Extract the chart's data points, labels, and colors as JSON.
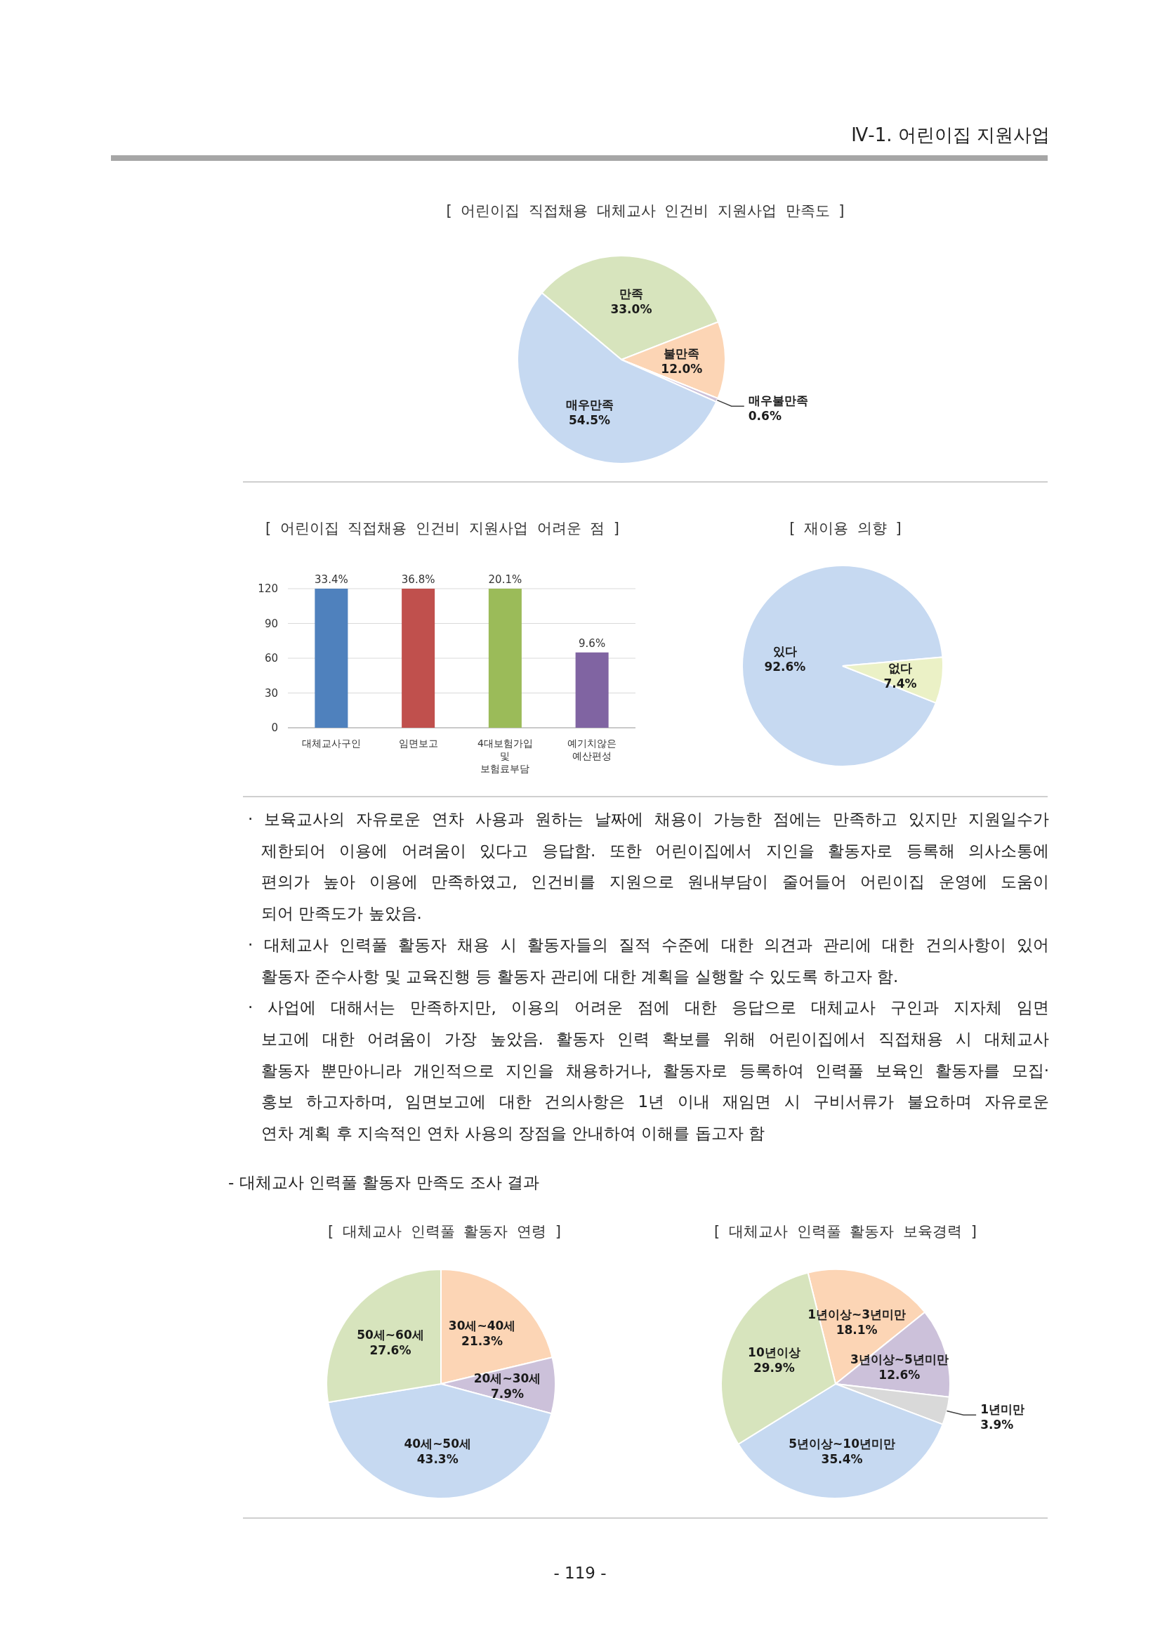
{
  "chart_data": [
    {
      "type": "pie",
      "title": "[ 어린이집 직접채용 대체교사 인건비 지원사업 만족도 ]",
      "categories": [
        "만족",
        "불만족",
        "매우불만족",
        "매우만족"
      ],
      "values": [
        33.0,
        12.0,
        0.6,
        54.5
      ],
      "value_labels": [
        "33.0%",
        "12.0%",
        "0.6%",
        "54.5%"
      ],
      "colors": [
        "#d7e4bd",
        "#fcd5b5",
        "#ccc1da",
        "#c6d9f1"
      ],
      "annotations": [
        "Ⅳ-1. 어린이집 지원사업"
      ]
    },
    {
      "type": "bar",
      "title": "[ 어린이집 직접채용 인건비 지원사업 어려운 점 ]",
      "categories": [
        "대체교사구인",
        "임면보고",
        "4대보험가입\n및\n보험료부담",
        "예기치않은\n예산편성"
      ],
      "values": [
        120,
        120,
        120,
        65
      ],
      "colors": [
        "#4f81bd",
        "#c0504d",
        "#9bbb59",
        "#8064a2"
      ],
      "ylim": [
        0,
        120
      ],
      "yticks": [
        0,
        30,
        60,
        90,
        120
      ],
      "grid": "y",
      "annotations": [
        {
          "text": "33.4%",
          "x": "대체교사구인",
          "y": 120
        },
        {
          "text": "36.8%",
          "x": "임면보고",
          "y": 120
        },
        {
          "text": "20.1%",
          "x": "4대보험가입\n및\n보험료부담",
          "y": 120
        },
        {
          "text": "9.6%",
          "x": "예기치않은\n예산편성",
          "y": 65
        }
      ]
    },
    {
      "type": "pie",
      "title": "[ 재이용 의향 ]",
      "categories": [
        "있다",
        "없다"
      ],
      "values": [
        92.6,
        7.4
      ],
      "value_labels": [
        "92.6%",
        "7.4%"
      ],
      "colors": [
        "#c6d9f1",
        "#ebf1c6"
      ],
      "annotations": [
        "· 보육교사의 자유로운 연차 사용과 원하는 날짜에 채용이 가능한 점에는 만족하고 있지만 지원일수가\n제한되어 이용에 어려움이 있다고 응답함. 또한 어린이집에서 지인을 활동자로 등록해 의사소통에\n편의가 높아 이용에 만족하였고, 인건비를 지원으로 원내부담이 줄어들어 어린이집 운영에 도움이\n되어 만족도가 높았음.",
        "· 대체교사 인력풀 활동자 채용 시 활동자들의 질적 수준에 대한 의견과 관리에 대한 건의사항이 있어\n활동자 준수사항 및 교육진행 등 활동자 관리에 대한 계획을 실행할 수 있도록 하고자 함.",
        "· 사업에 대해서는 만족하지만, 이용의 어려운 점에 대한 응답으로 대체교사 구인과 지자체 임면\n보고에 대한 어려움이 가장 높았음. 활동자 인력 확보를 위해 어린이집에서 직접채용 시 대체교사\n활동자 뿐만아니라 개인적으로 지인을 채용하거나, 활동자로 등록하여 인력풀 보육인 활동자를 모집·\n홍보 하고자하며, 임면보고에 대한 건의사항은 1년 이내 재임면 시 구비서류가 불요하며 자유로운\n연차 계획 후 지속적인 연차 사용의 장점을 안내하여 이해를 돕고자 함"
      ]
    },
    {
      "type": "pie",
      "title": "[ 대체교사 인력풀 활동자 연령 ]",
      "categories": [
        "30세~40세",
        "20세~30세",
        "40세~50세",
        "50세~60세"
      ],
      "values": [
        21.3,
        7.9,
        43.3,
        27.6
      ],
      "value_labels": [
        "21.3%",
        "7.9%",
        "43.3%",
        "27.6%"
      ],
      "colors": [
        "#fcd5b5",
        "#ccc1da",
        "#c6d9f1",
        "#d7e4bd"
      ],
      "annotations": [
        "- 대체교사 인력풀 활동자 만족도 조사 결과"
      ]
    },
    {
      "type": "pie",
      "title": "[ 대체교사 인력풀 활동자 보육경력 ]",
      "categories": [
        "1년이상~3년미만",
        "3년이상~5년미만",
        "1년미만",
        "5년이상~10년미만",
        "10년이상"
      ],
      "values": [
        18.1,
        12.6,
        3.9,
        35.4,
        29.9
      ],
      "value_labels": [
        "18.1%",
        "12.6%",
        "3.9%",
        "35.4%",
        "29.9%"
      ],
      "colors": [
        "#fcd5b5",
        "#ccc1da",
        "#d9d9d9",
        "#c6d9f1",
        "#d7e4bd"
      ],
      "annotations": [
        "- 119 -"
      ]
    }
  ]
}
